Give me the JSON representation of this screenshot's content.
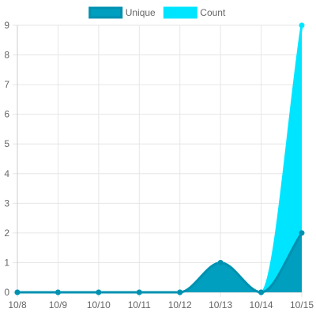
{
  "chart_data": {
    "type": "area",
    "categories": [
      "10/8",
      "10/9",
      "10/10",
      "10/11",
      "10/12",
      "10/13",
      "10/14",
      "10/15"
    ],
    "series": [
      {
        "name": "Count",
        "values": [
          0,
          0,
          0,
          0,
          0,
          1,
          0,
          9
        ],
        "fill": "#00e5ff",
        "stroke": "#00e5ff"
      },
      {
        "name": "Unique",
        "values": [
          0,
          0,
          0,
          0,
          0,
          1,
          0,
          2
        ],
        "fill": "#009fbf",
        "stroke": "#0090b0"
      }
    ],
    "legend_order": [
      "Unique",
      "Count"
    ],
    "legend_position": "top",
    "ylim": [
      0,
      9
    ],
    "yticks": [
      0,
      1,
      2,
      3,
      4,
      5,
      6,
      7,
      8,
      9
    ],
    "grid": true,
    "grid_color": "#e6e6e6",
    "curve": "smooth"
  }
}
